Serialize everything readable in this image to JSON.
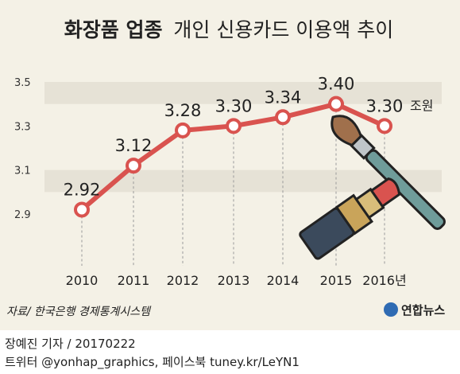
{
  "chart_data": {
    "type": "line",
    "title_bold": "화장품 업종",
    "title_rest": "개인 신용카드 이용액 추이",
    "unit": "조원",
    "categories": [
      "2010",
      "2011",
      "2012",
      "2013",
      "2014",
      "2015",
      "2016년"
    ],
    "values": [
      2.92,
      3.12,
      3.28,
      3.3,
      3.34,
      3.4,
      3.3
    ],
    "value_labels": [
      "2.92",
      "3.12",
      "3.28",
      "3.30",
      "3.34",
      "3.40",
      "3.30"
    ],
    "yticks": [
      "2.9",
      "3.1",
      "3.3",
      "3.5"
    ],
    "ylim": [
      2.9,
      3.5
    ],
    "grid": "alternating horizontal bands, dashed vertical guides",
    "colors": {
      "line": "#d9534f",
      "marker_fill": "#ffffff",
      "band": "#e6e2d6",
      "background": "#f4f1e6",
      "text": "#222222"
    }
  },
  "source": "자료/ 한국은행 경제통계시스템",
  "brand": "연합뉴스",
  "credit_line1": "장예진 기자 / 20170222",
  "credit_line2": "트위터 @yonhap_graphics, 페이스북 tuney.kr/LeYN1",
  "illustration": "makeup-brush-and-lipstick-icon"
}
